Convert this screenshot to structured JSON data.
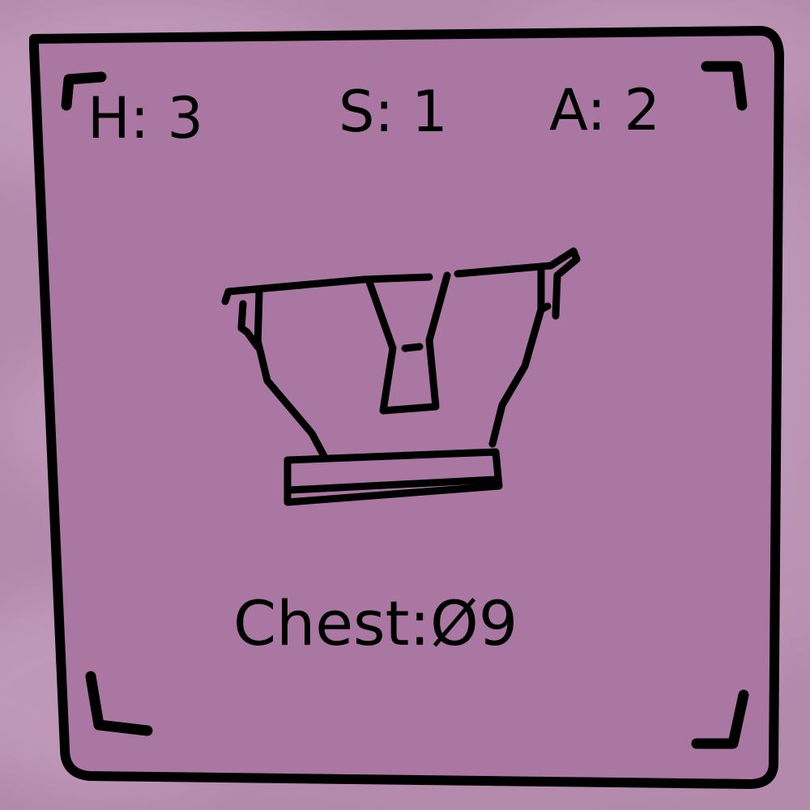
{
  "card": {
    "stats": {
      "health": "H: 3",
      "speed": "S: 1",
      "armor": "A: 2"
    },
    "item": {
      "illustration_icon": "chest-armor-icon",
      "label": "Chest:Ø9"
    },
    "colors": {
      "background": "#b48aac",
      "card_fill": "#a977a2",
      "outline": "#000000"
    }
  }
}
